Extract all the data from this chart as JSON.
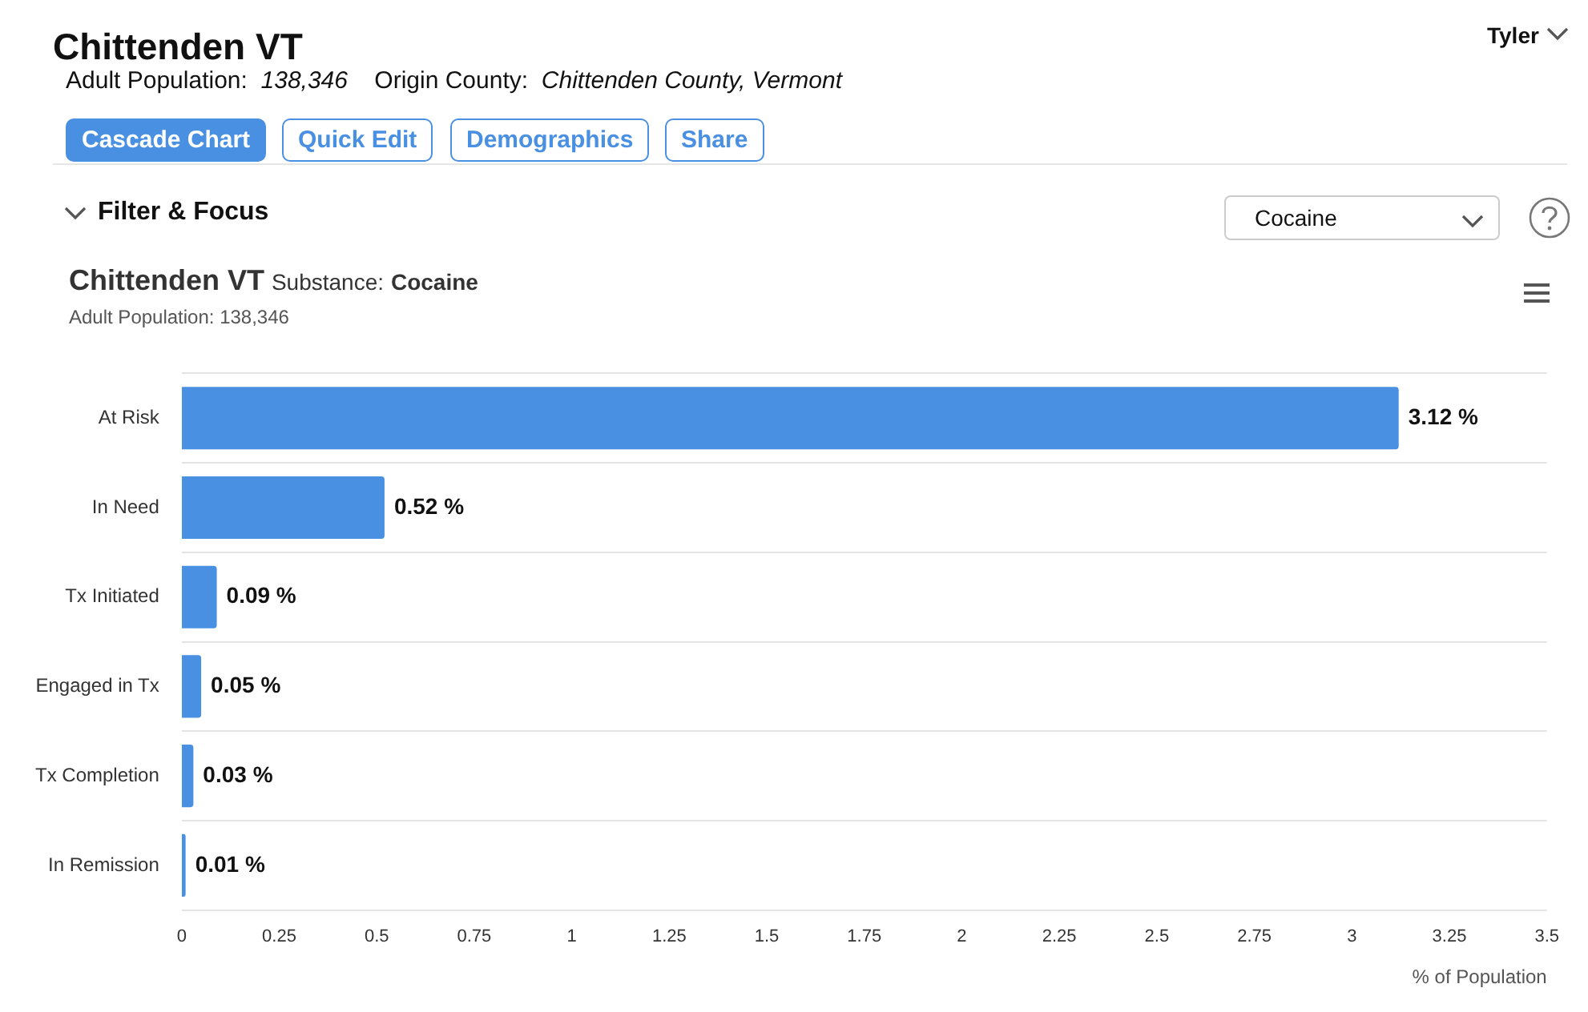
{
  "chart_data": {
    "type": "bar",
    "orientation": "horizontal",
    "title": "Chittenden VT",
    "subtitle": "Adult Population: 138,346",
    "xlabel": "% of Population",
    "categories": [
      "At Risk",
      "In Need",
      "Tx Initiated",
      "Engaged in Tx",
      "Tx Completion",
      "In Remission"
    ],
    "values": [
      3.12,
      0.52,
      0.09,
      0.05,
      0.03,
      0.01
    ],
    "color": "#4a90e2",
    "value_labels": [
      "3.12 %",
      "0.52 %",
      "0.09 %",
      "0.05 %",
      "0.03 %",
      "0.01 %"
    ],
    "xlim": [
      0,
      3.5
    ],
    "xticks": [
      0,
      0.25,
      0.5,
      0.75,
      1,
      1.25,
      1.5,
      1.75,
      2,
      2.25,
      2.5,
      2.75,
      3,
      3.25,
      3.5
    ],
    "grid": "y",
    "legend": false,
    "annotations": [
      "Chittenden VT",
      "Adult Population:",
      "138,346",
      "Origin County:",
      "Chittenden County, Vermont",
      "Cascade Chart",
      "Quick Edit",
      "Demographics",
      "Share",
      "Filter & Focus",
      "Cocaine",
      "Tyler",
      "Substance:",
      "Cocaine"
    ]
  }
}
